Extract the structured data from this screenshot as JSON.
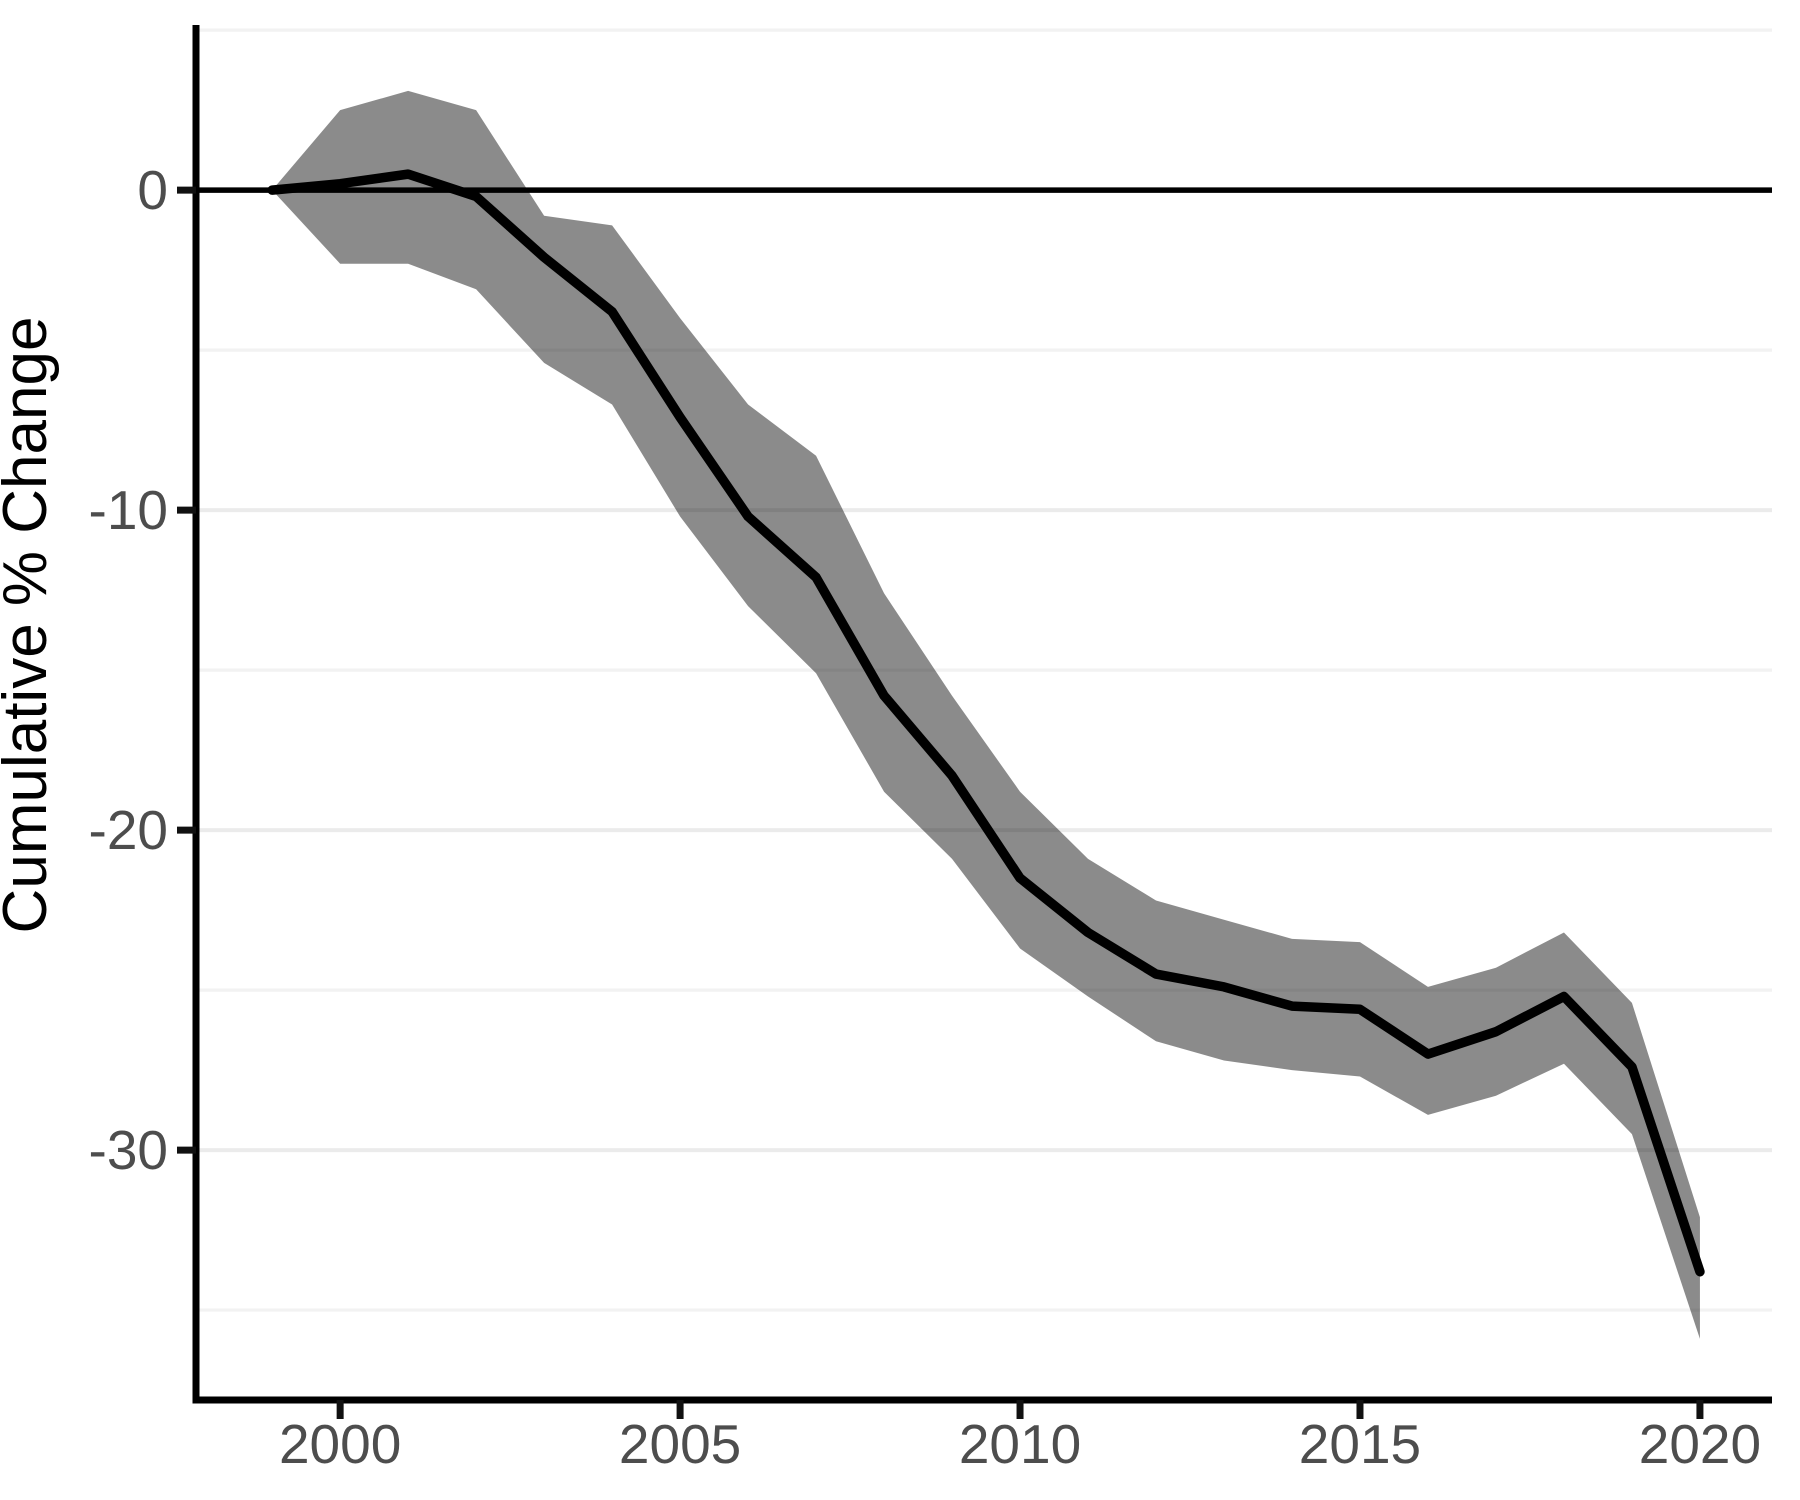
{
  "chart_data": {
    "type": "line",
    "title": "",
    "xlabel": "",
    "ylabel": "Cumulative % Change",
    "legend": "none",
    "grid": "horizontal-only",
    "zero_reference_line": 0,
    "x": [
      1999,
      2000,
      2001,
      2002,
      2003,
      2004,
      2005,
      2006,
      2007,
      2008,
      2009,
      2010,
      2011,
      2012,
      2013,
      2014,
      2015,
      2016,
      2017,
      2018,
      2019,
      2020
    ],
    "series": [
      {
        "name": "mean_cumulative_pct_change",
        "values": [
          0.0,
          0.2,
          0.5,
          -0.2,
          -2.1,
          -3.8,
          -7.1,
          -10.2,
          -12.1,
          -15.8,
          -18.3,
          -21.5,
          -23.2,
          -24.5,
          -24.9,
          -25.5,
          -25.6,
          -27.0,
          -26.3,
          -25.2,
          -27.4,
          -33.8
        ]
      },
      {
        "name": "ci_upper",
        "values": [
          0.0,
          2.5,
          3.1,
          2.5,
          -0.8,
          -1.1,
          -4.0,
          -6.7,
          -8.3,
          -12.6,
          -15.8,
          -18.8,
          -20.9,
          -22.2,
          -22.8,
          -23.4,
          -23.5,
          -24.9,
          -24.3,
          -23.2,
          -25.4,
          -32.1
        ]
      },
      {
        "name": "ci_lower",
        "values": [
          0.0,
          -2.3,
          -2.3,
          -3.1,
          -5.4,
          -6.7,
          -10.2,
          -13.0,
          -15.1,
          -18.8,
          -20.9,
          -23.7,
          -25.2,
          -26.6,
          -27.2,
          -27.5,
          -27.7,
          -28.9,
          -28.3,
          -27.3,
          -29.5,
          -35.9
        ]
      }
    ],
    "x_ticks": [
      {
        "value": 2000,
        "label": "2000"
      },
      {
        "value": 2005,
        "label": "2005"
      },
      {
        "value": 2010,
        "label": "2010"
      },
      {
        "value": 2015,
        "label": "2015"
      },
      {
        "value": 2020,
        "label": "2020"
      }
    ],
    "y_ticks": [
      {
        "value": 0,
        "label": "0"
      },
      {
        "value": -10,
        "label": "-10"
      },
      {
        "value": -20,
        "label": "-20"
      },
      {
        "value": -30,
        "label": "-30"
      }
    ],
    "y_minor_ticks": [
      5,
      -5,
      -15,
      -25,
      -35
    ],
    "xlim": [
      1997.88,
      2021.06
    ],
    "ylim": [
      -37.81,
      5.16
    ],
    "colors": {
      "line": "#000000",
      "ribbon": "rgba(0,0,0,0.455)",
      "zero_line": "#000000",
      "grid_major": "#ebebeb",
      "grid_minor": "#f2f2f2",
      "axis_line": "#000000",
      "tick_mark": "#111111",
      "tick_text": "#4d4d4d",
      "axis_title_text": "#000000",
      "background": "#ffffff"
    }
  }
}
